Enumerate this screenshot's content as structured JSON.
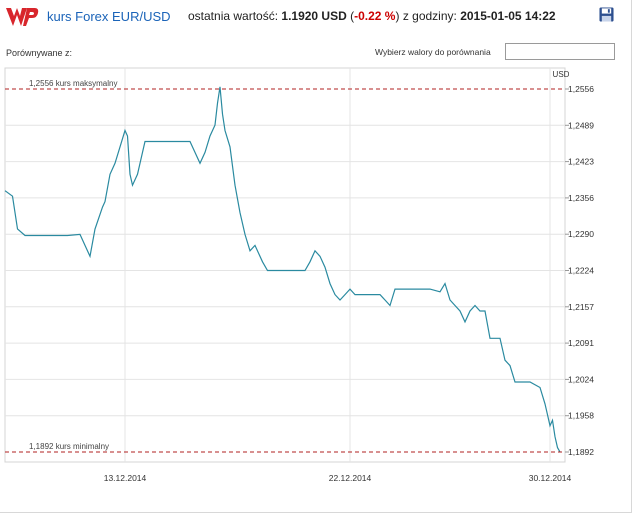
{
  "header": {
    "logo_icon": "wp-logo-icon",
    "title": "kurs Forex EUR/USD",
    "last_value_label": "ostatnia wartość:",
    "last_value": "1.1920 USD",
    "change_open": "(",
    "change": "-0.22 %",
    "change_close": ")",
    "time_label": "z godziny:",
    "time": "2015-01-05 14:22",
    "save_icon": "floppy-disk-icon",
    "accent_color": "#1a63b8",
    "change_color": "#cc0000"
  },
  "compare": {
    "label": "Porównywane z:",
    "pick_label": "Wybierz walory do porównania",
    "input_value": ""
  },
  "chart_data": {
    "type": "line",
    "unit_label": "USD",
    "y_ticks": [
      "1,2556",
      "1,2489",
      "1,2423",
      "1,2356",
      "1,2290",
      "1,2224",
      "1,2157",
      "1,2091",
      "1,2024",
      "1,1958",
      "1,1892"
    ],
    "x_ticks": [
      {
        "label": "13.12.2014",
        "day": 12.8
      },
      {
        "label": "22.12.2014",
        "day": 21.8
      },
      {
        "label": "30.12.2014",
        "day": 29.8
      }
    ],
    "ylim": [
      1.1892,
      1.2556
    ],
    "grid": true,
    "line_color": "#2a8aa0",
    "ref_color": "#b22222",
    "max_line": {
      "value": 1.2556,
      "label": "1,2556 kurs maksymalny"
    },
    "min_line": {
      "value": 1.1892,
      "label": "1,1892 kurs minimalny"
    },
    "series": [
      {
        "points": [
          [
            8.0,
            1.237
          ],
          [
            8.3,
            1.236
          ],
          [
            8.5,
            1.23
          ],
          [
            8.8,
            1.2288
          ],
          [
            9.5,
            1.2288
          ],
          [
            10.5,
            1.2288
          ],
          [
            11.0,
            1.229
          ],
          [
            11.2,
            1.227
          ],
          [
            11.4,
            1.225
          ],
          [
            11.6,
            1.23
          ],
          [
            11.9,
            1.234
          ],
          [
            12.0,
            1.235
          ],
          [
            12.2,
            1.24
          ],
          [
            12.4,
            1.242
          ],
          [
            12.6,
            1.245
          ],
          [
            12.8,
            1.248
          ],
          [
            12.9,
            1.247
          ],
          [
            13.0,
            1.24
          ],
          [
            13.1,
            1.238
          ],
          [
            13.3,
            1.24
          ],
          [
            13.5,
            1.244
          ],
          [
            13.6,
            1.246
          ],
          [
            14.2,
            1.246
          ],
          [
            15.0,
            1.246
          ],
          [
            15.4,
            1.246
          ],
          [
            15.6,
            1.244
          ],
          [
            15.8,
            1.242
          ],
          [
            16.0,
            1.244
          ],
          [
            16.2,
            1.247
          ],
          [
            16.4,
            1.249
          ],
          [
            16.5,
            1.253
          ],
          [
            16.6,
            1.256
          ],
          [
            16.7,
            1.251
          ],
          [
            16.8,
            1.248
          ],
          [
            17.0,
            1.245
          ],
          [
            17.2,
            1.238
          ],
          [
            17.4,
            1.233
          ],
          [
            17.6,
            1.229
          ],
          [
            17.8,
            1.226
          ],
          [
            18.0,
            1.227
          ],
          [
            18.3,
            1.224
          ],
          [
            18.5,
            1.2224
          ],
          [
            19.0,
            1.2224
          ],
          [
            20.0,
            1.2224
          ],
          [
            20.2,
            1.224
          ],
          [
            20.4,
            1.226
          ],
          [
            20.6,
            1.225
          ],
          [
            20.8,
            1.223
          ],
          [
            21.0,
            1.22
          ],
          [
            21.2,
            1.218
          ],
          [
            21.4,
            1.217
          ],
          [
            21.6,
            1.218
          ],
          [
            21.8,
            1.219
          ],
          [
            22.0,
            1.218
          ],
          [
            22.6,
            1.218
          ],
          [
            23.0,
            1.218
          ],
          [
            23.2,
            1.217
          ],
          [
            23.4,
            1.216
          ],
          [
            23.6,
            1.219
          ],
          [
            24.0,
            1.219
          ],
          [
            25.0,
            1.219
          ],
          [
            25.4,
            1.2185
          ],
          [
            25.6,
            1.22
          ],
          [
            25.8,
            1.217
          ],
          [
            26.0,
            1.216
          ],
          [
            26.2,
            1.215
          ],
          [
            26.4,
            1.213
          ],
          [
            26.6,
            1.215
          ],
          [
            26.8,
            1.216
          ],
          [
            27.0,
            1.215
          ],
          [
            27.2,
            1.215
          ],
          [
            27.4,
            1.21
          ],
          [
            27.6,
            1.21
          ],
          [
            27.8,
            1.21
          ],
          [
            28.0,
            1.206
          ],
          [
            28.2,
            1.205
          ],
          [
            28.4,
            1.202
          ],
          [
            28.6,
            1.202
          ],
          [
            28.8,
            1.202
          ],
          [
            29.0,
            1.202
          ],
          [
            29.4,
            1.201
          ],
          [
            29.6,
            1.198
          ],
          [
            29.7,
            1.196
          ],
          [
            29.8,
            1.194
          ],
          [
            29.9,
            1.195
          ],
          [
            30.0,
            1.192
          ],
          [
            30.1,
            1.19
          ],
          [
            30.2,
            1.1892
          ]
        ]
      }
    ]
  }
}
